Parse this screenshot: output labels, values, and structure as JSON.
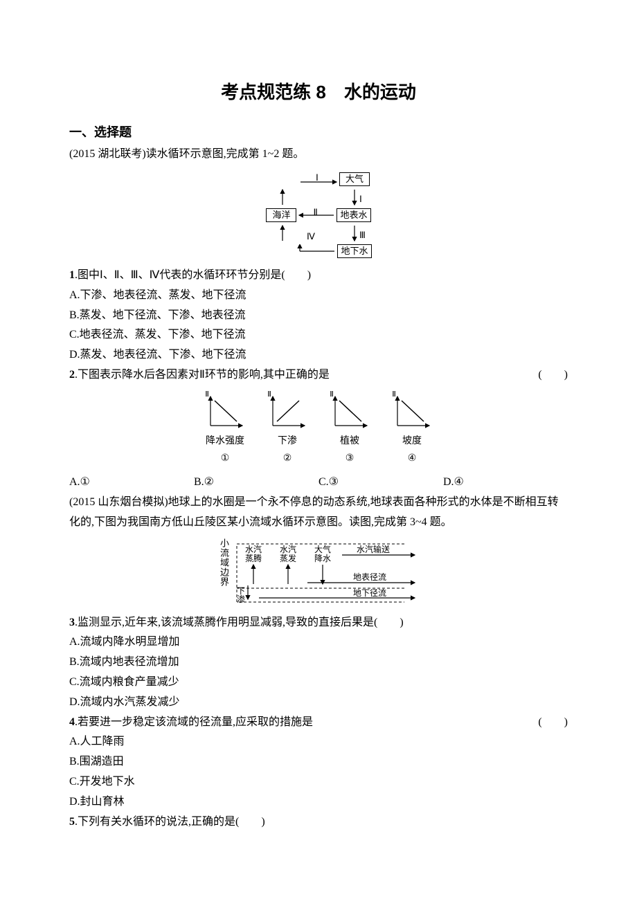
{
  "title": "考点规范练 8　水的运动",
  "section1": "一、选择题",
  "intro1": "(2015 湖北联考)读水循环示意图,完成第 1~2 题。",
  "diagram1": {
    "nodes": {
      "atm": "大气",
      "ocean": "海洋",
      "surface": "地表水",
      "ground": "地下水"
    },
    "labels": {
      "I": "Ⅰ",
      "II": "Ⅱ",
      "III": "Ⅲ",
      "IV": "Ⅳ"
    },
    "font_size": 13,
    "border_color": "#000000"
  },
  "q1": {
    "stem_num": "1",
    "stem": ".图中Ⅰ、Ⅱ、Ⅲ、Ⅳ代表的水循环环节分别是(　　)",
    "A": "A.下渗、地表径流、蒸发、地下径流",
    "B": "B.蒸发、地下径流、下渗、地表径流",
    "C": "C.地表径流、蒸发、下渗、地下径流",
    "D": "D.蒸发、地表径流、下渗、地下径流"
  },
  "q2": {
    "stem_num": "2",
    "stem": ".下图表示降水后各因素对Ⅱ环节的影响,其中正确的是",
    "paren": "(　　)",
    "charts": {
      "y_label": "Ⅱ",
      "items": [
        {
          "x": "降水强度",
          "num": "①",
          "slope": "down"
        },
        {
          "x": "下渗",
          "num": "②",
          "slope": "up"
        },
        {
          "x": "植被",
          "num": "③",
          "slope": "down"
        },
        {
          "x": "坡度",
          "num": "④",
          "slope": "down"
        }
      ],
      "axis_color": "#000000",
      "line_width": 1.5
    },
    "A": "A.①",
    "B": "B.②",
    "C": "C.③",
    "D": "D.④"
  },
  "intro2": "(2015 山东烟台模拟)地球上的水圈是一个永不停息的动态系统,地球表面各种形式的水体是不断相互转化的,下图为我国南方低山丘陵区某小流域水循环示意图。读图,完成第 3~4 题。",
  "diagram2": {
    "vert": "小流域边界",
    "top": [
      "水汽蒸腾",
      "水汽蒸发",
      "大气降水",
      "水汽输送"
    ],
    "mid": "地表径流",
    "left": "下渗",
    "bot": "地下径流",
    "font_size": 13,
    "dash": "4,3",
    "arrow_color": "#000000"
  },
  "q3": {
    "stem_num": "3",
    "stem": ".监测显示,近年来,该流域蒸腾作用明显减弱,导致的直接后果是(　　)",
    "A": "A.流域内降水明显增加",
    "B": "B.流域内地表径流增加",
    "C": "C.流域内粮食产量减少",
    "D": "D.流域内水汽蒸发减少"
  },
  "q4": {
    "stem_num": "4",
    "stem": ".若要进一步稳定该流域的径流量,应采取的措施是",
    "paren": "(　　)",
    "A": "A.人工降雨",
    "B": "B.围湖造田",
    "C": "C.开发地下水",
    "D": "D.封山育林"
  },
  "q5": {
    "stem_num": "5",
    "stem": ".下列有关水循环的说法,正确的是(　　)"
  }
}
